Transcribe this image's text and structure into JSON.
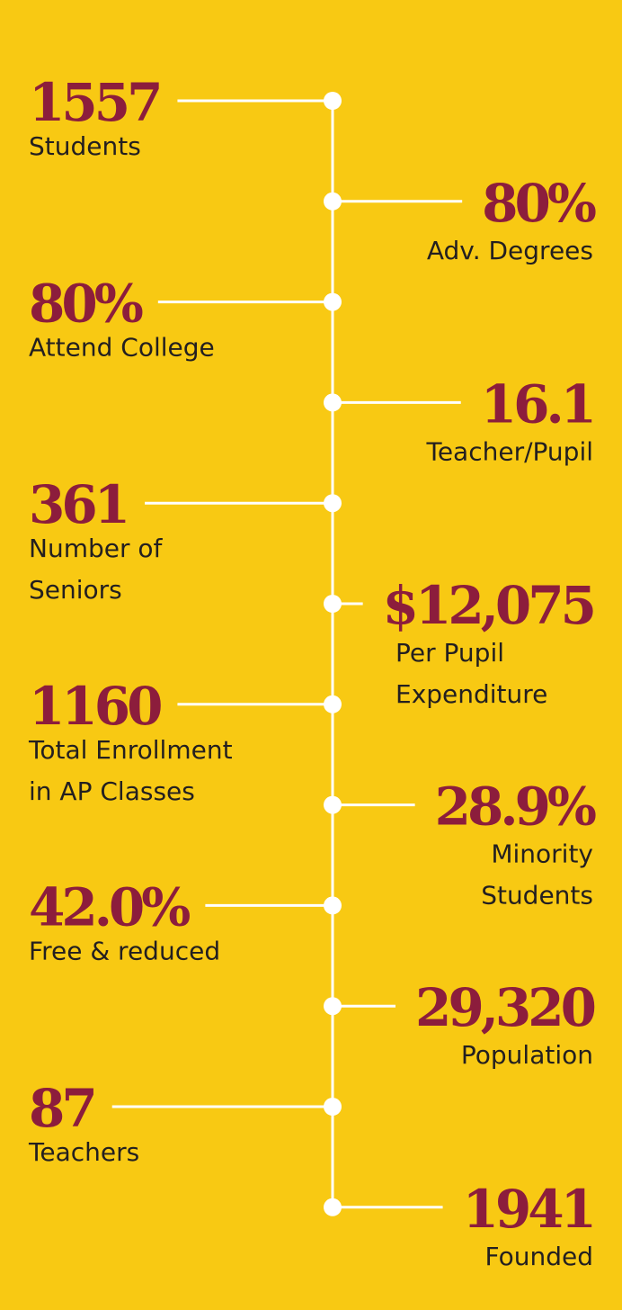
{
  "items": [
    {
      "value": "1557",
      "label": [
        "Students"
      ]
    },
    {
      "value": "80%",
      "label": [
        "Adv. Degrees"
      ]
    },
    {
      "value": "80%",
      "label": [
        "Attend College"
      ]
    },
    {
      "value": "16.1",
      "label": [
        "Teacher/Pupil"
      ]
    },
    {
      "value": "361",
      "label": [
        "Number of",
        "Seniors"
      ]
    },
    {
      "value": "$12,075",
      "label": [
        "Per Pupil",
        "Expenditure"
      ]
    },
    {
      "value": "1160",
      "label": [
        "Total Enrollment",
        "in AP Classes"
      ]
    },
    {
      "value": "28.9%",
      "label": [
        "Minority",
        "Students"
      ]
    },
    {
      "value": "42.0%",
      "label": [
        "Free & reduced"
      ]
    },
    {
      "value": "29,320",
      "label": [
        "Population"
      ]
    },
    {
      "value": "87",
      "label": [
        "Teachers"
      ]
    },
    {
      "value": "1941",
      "label": [
        "Founded"
      ]
    }
  ]
}
